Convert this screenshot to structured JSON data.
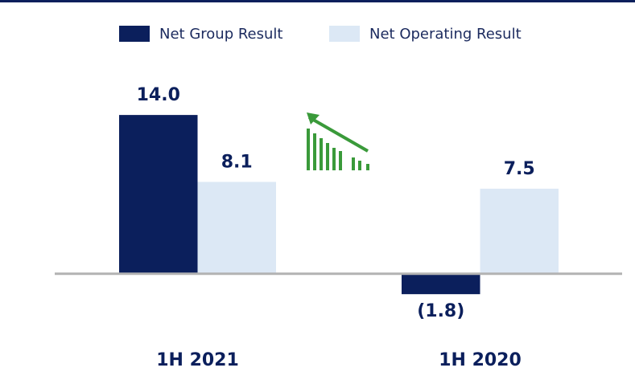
{
  "chart_data": {
    "type": "bar",
    "categories": [
      "1H 2021",
      "1H 2020"
    ],
    "series": [
      {
        "name": "Net Group Result",
        "color": "#0b1f5c",
        "values": [
          14.0,
          -1.8
        ],
        "value_labels": [
          "14.0",
          "(1.8)"
        ]
      },
      {
        "name": "Net Operating Result",
        "color": "#dce8f5",
        "values": [
          8.1,
          7.5
        ],
        "value_labels": [
          "8.1",
          "7.5"
        ]
      }
    ],
    "ylim": [
      -2,
      15
    ]
  }
}
